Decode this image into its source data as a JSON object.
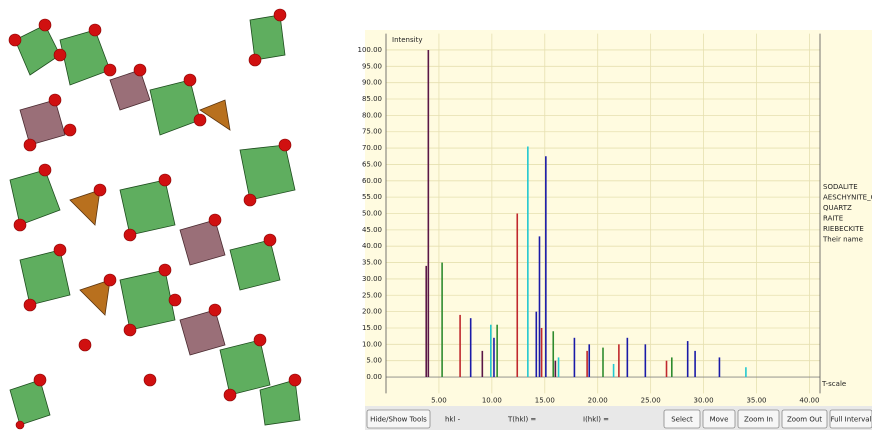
{
  "chart_data": {
    "type": "stem",
    "y_label": "Intensity",
    "x_label": "T-scale",
    "xlim": [
      0,
      41
    ],
    "ylim": [
      -5,
      105
    ],
    "grid": true,
    "legend": "right",
    "xticks": [
      {
        "value": 5,
        "label": "5.00"
      },
      {
        "value": 10,
        "label": "10.00"
      },
      {
        "value": 15,
        "label": "15.00"
      },
      {
        "value": 20,
        "label": "20.00"
      },
      {
        "value": 25,
        "label": "25.00"
      },
      {
        "value": 30,
        "label": "30.00"
      },
      {
        "value": 35,
        "label": "35.00"
      },
      {
        "value": 40,
        "label": "40.00"
      }
    ],
    "yticks": [
      {
        "value": 0,
        "label": "0.00"
      },
      {
        "value": 5,
        "label": "5.00"
      },
      {
        "value": 10,
        "label": "10.00"
      },
      {
        "value": 15,
        "label": "15.00"
      },
      {
        "value": 20,
        "label": "20.00"
      },
      {
        "value": 25,
        "label": "25.00"
      },
      {
        "value": 30,
        "label": "30.00"
      },
      {
        "value": 35,
        "label": "35.00"
      },
      {
        "value": 40,
        "label": "40.00"
      },
      {
        "value": 45,
        "label": "45.00"
      },
      {
        "value": 50,
        "label": "50.00"
      },
      {
        "value": 55,
        "label": "55.00"
      },
      {
        "value": 60,
        "label": "60.00"
      },
      {
        "value": 65,
        "label": "65.00"
      },
      {
        "value": 70,
        "label": "70.00"
      },
      {
        "value": 75,
        "label": "75.00"
      },
      {
        "value": 80,
        "label": "80.00"
      },
      {
        "value": 85,
        "label": "85.00"
      },
      {
        "value": 90,
        "label": "90.00"
      },
      {
        "value": 95,
        "label": "95.00"
      },
      {
        "value": 100,
        "label": "100.00"
      }
    ],
    "series": [
      {
        "name": "SODALITE",
        "color": "#c0282d",
        "x": [
          7.0,
          12.4,
          14.7,
          19.0,
          22.0,
          26.5
        ],
        "values": [
          19,
          50,
          15,
          8,
          10,
          5
        ]
      },
      {
        "name": "AESCHYNITE_CE",
        "color": "#1a1aa8",
        "x": [
          8.0,
          10.2,
          14.2,
          14.5,
          15.1,
          17.8,
          19.2,
          22.8,
          24.5,
          28.5,
          29.2,
          31.5
        ],
        "values": [
          18,
          12,
          20,
          43,
          67.5,
          12,
          10,
          12,
          10,
          11,
          8,
          6
        ]
      },
      {
        "name": "QUARTZ",
        "color": "#22c8d0",
        "x": [
          9.9,
          13.4,
          16.3,
          21.5,
          34.0
        ],
        "values": [
          16,
          70.5,
          6,
          4,
          3
        ]
      },
      {
        "name": "RAITE",
        "color": "#5a1646",
        "x": [
          3.8,
          4.0,
          9.1,
          16.0
        ],
        "values": [
          34,
          100,
          8,
          5
        ]
      },
      {
        "name": "RIEBECKITE",
        "color": "#2e8b2e",
        "x": [
          5.3,
          10.5,
          15.8,
          20.5,
          27.0
        ],
        "values": [
          35,
          16,
          14,
          9,
          6
        ]
      },
      {
        "name": "Their name",
        "color": "#e0b030",
        "x": [],
        "values": []
      }
    ]
  },
  "ui": {
    "toolbar": [
      "Hide/Show Tools",
      "hkl -",
      "T(hkl) =",
      "I(hkl) =",
      "Select",
      "Move",
      "Zoom In",
      "Zoom Out",
      "Full Interval"
    ]
  }
}
